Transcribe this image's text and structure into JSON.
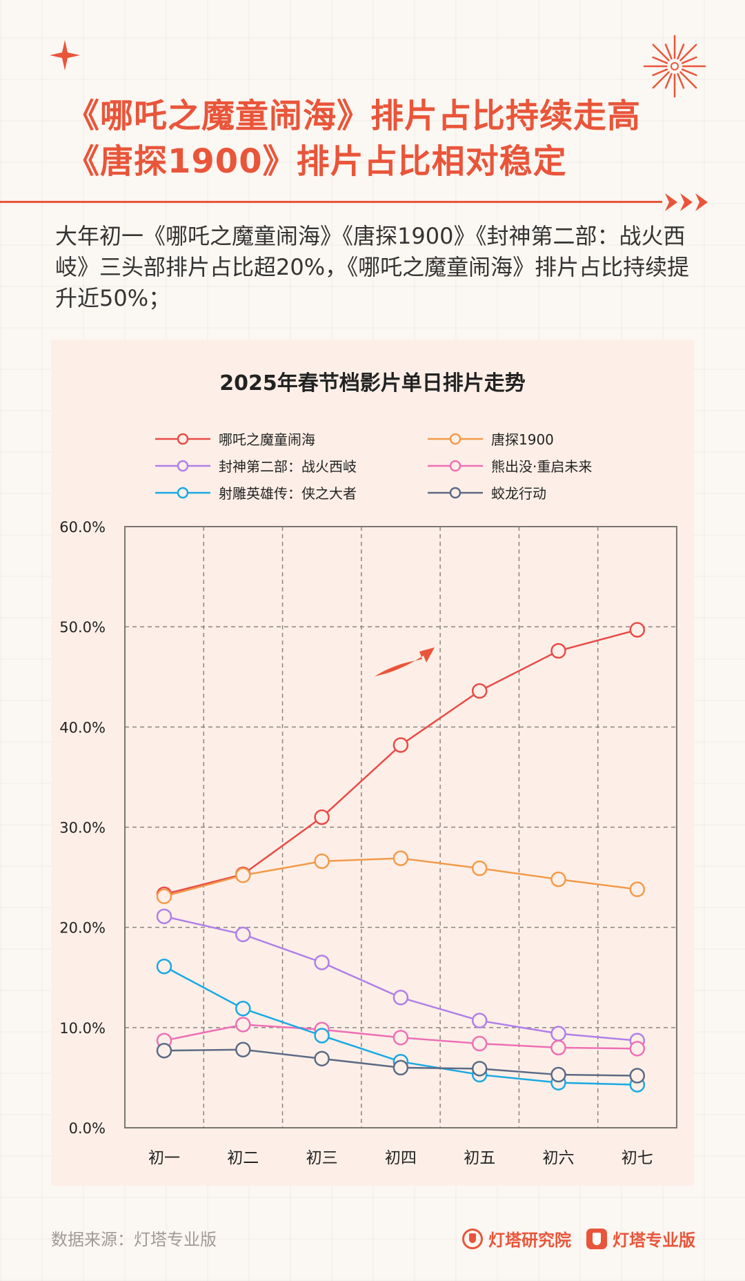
{
  "title": {
    "line1": "《哪吒之魔童闹海》排片占比持续走高",
    "line2": "《唐探1900》排片占比相对稳定"
  },
  "description": "大年初一《哪吒之魔童闹海》《唐探1900》《封神第二部：战火西岐》三头部排片占比超20%，《哪吒之魔童闹海》排片占比持续提升近50%；",
  "footer": {
    "source": "数据来源：灯塔专业版",
    "brand1": "灯塔研究院",
    "brand2": "灯塔专业版"
  },
  "chart_data": {
    "type": "line",
    "title": "2025年春节档影片单日排片走势",
    "categories": [
      "初一",
      "初二",
      "初三",
      "初四",
      "初五",
      "初六",
      "初七"
    ],
    "ylim": [
      0,
      60
    ],
    "yticks": [
      "0.0%",
      "10.0%",
      "20.0%",
      "30.0%",
      "40.0%",
      "50.0%",
      "60.0%"
    ],
    "xlabel": "",
    "ylabel": "",
    "grid": true,
    "legend_position": "top",
    "series": [
      {
        "name": "哪吒之魔童闹海",
        "color": "#e94a47",
        "values": [
          23.3,
          25.3,
          31.0,
          38.2,
          43.6,
          47.6,
          49.7
        ]
      },
      {
        "name": "唐探1900",
        "color": "#f39a4a",
        "values": [
          23.1,
          25.2,
          26.6,
          26.9,
          25.9,
          24.8,
          23.8
        ]
      },
      {
        "name": "封神第二部：战火西岐",
        "color": "#b07ee8",
        "values": [
          21.1,
          19.3,
          16.5,
          13.0,
          10.7,
          9.4,
          8.7
        ]
      },
      {
        "name": "熊出没·重启未来",
        "color": "#ee6fb5",
        "values": [
          8.7,
          10.3,
          9.8,
          9.0,
          8.4,
          8.0,
          7.9
        ]
      },
      {
        "name": "射雕英雄传：侠之大者",
        "color": "#19a8e3",
        "values": [
          16.1,
          11.9,
          9.2,
          6.6,
          5.3,
          4.5,
          4.3
        ]
      },
      {
        "name": "蛟龙行动",
        "color": "#5b6a85",
        "values": [
          7.7,
          7.8,
          6.9,
          6.0,
          5.9,
          5.3,
          5.2
        ]
      }
    ]
  }
}
